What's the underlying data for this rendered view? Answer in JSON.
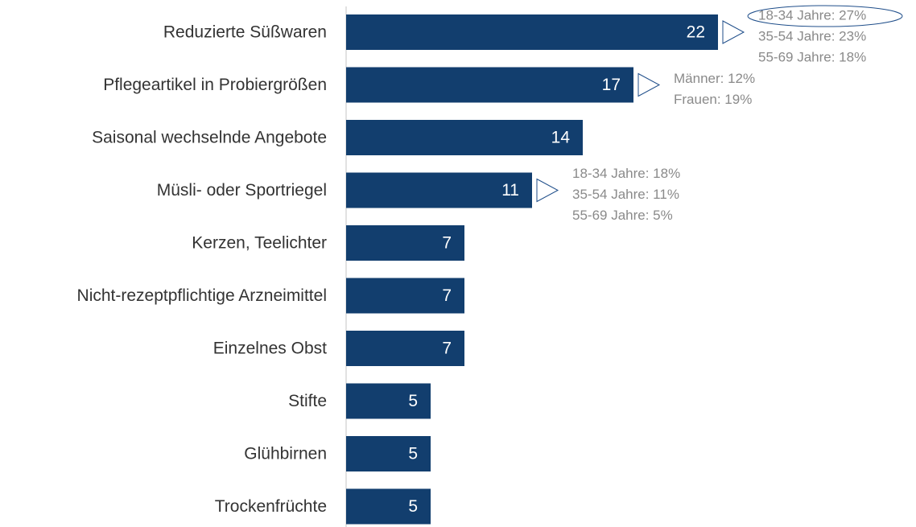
{
  "chart_data": {
    "type": "bar",
    "orientation": "horizontal",
    "categories": [
      "Reduzierte Süßwaren",
      "Pflegeartikel in Probiergrößen",
      "Saisonal wechselnde Angebote",
      "Müsli- oder Sportriegel",
      "Kerzen, Teelichter",
      "Nicht-rezeptpflichtige Arzneimittel",
      "Einzelnes Obst",
      "Stifte",
      "Glühbirnen",
      "Trockenfrüchte"
    ],
    "values": [
      22,
      17,
      14,
      11,
      7,
      7,
      7,
      5,
      5,
      5
    ],
    "color": "#123e6e",
    "xlim": [
      0,
      22
    ],
    "annotations": [
      [
        "18-34 Jahre: 27%",
        "35-54 Jahre: 23%",
        "55-69 Jahre: 18%"
      ],
      [
        "Männer: 12%",
        "Frauen: 19%"
      ],
      null,
      [
        "18-34 Jahre: 18%",
        "35-54 Jahre: 11%",
        "55-69 Jahre: 5%"
      ],
      null,
      null,
      null,
      null,
      null,
      null
    ]
  }
}
